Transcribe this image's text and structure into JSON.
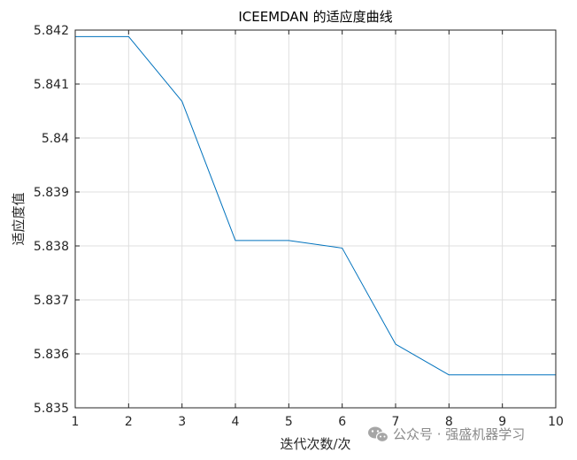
{
  "chart_data": {
    "type": "line",
    "title": "ICEEMDAN 的适应度曲线",
    "xlabel": "迭代次数/次",
    "ylabel": "适应度值",
    "x": [
      1,
      2,
      3,
      4,
      5,
      6,
      7,
      8,
      9,
      10
    ],
    "series": [
      {
        "values": [
          5.84188,
          5.84188,
          5.84068,
          5.8381,
          5.8381,
          5.83796,
          5.83618,
          5.83561,
          5.83561,
          5.83561
        ],
        "color": "#0072BD"
      }
    ],
    "xlim": [
      1,
      10
    ],
    "ylim": [
      5.835,
      5.842
    ],
    "xticks": [
      1,
      2,
      3,
      4,
      5,
      6,
      7,
      8,
      9,
      10
    ],
    "xtick_labels": [
      "1",
      "2",
      "3",
      "4",
      "5",
      "6",
      "7",
      "8",
      "9",
      "10"
    ],
    "yticks": [
      5.835,
      5.836,
      5.837,
      5.838,
      5.839,
      5.84,
      5.841,
      5.842
    ],
    "ytick_labels": [
      "5.835",
      "5.836",
      "5.837",
      "5.838",
      "5.839",
      "5.84",
      "5.841",
      "5.842"
    ],
    "grid": true,
    "grid_color": "#dfdfdf",
    "axis_color": "#262626"
  },
  "watermark": {
    "text": "公众号 · 强盛机器学习",
    "icon": "wechat-icon"
  }
}
